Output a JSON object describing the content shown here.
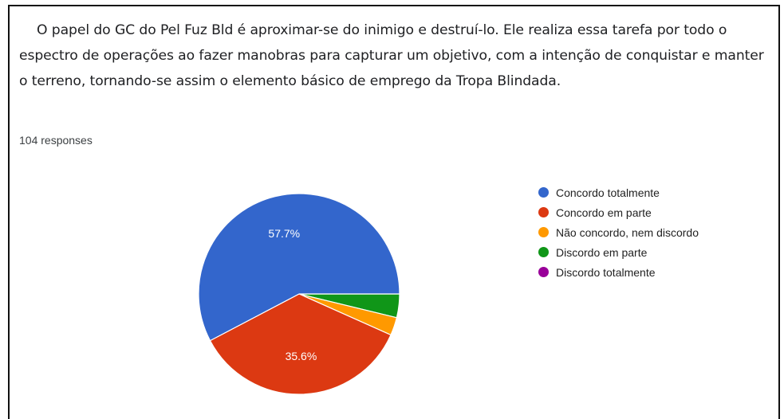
{
  "question": "O papel do GC do Pel Fuz Bld é aproximar-se do inimigo e destruí-lo. Ele realiza essa tarefa por todo o espectro de operações ao fazer manobras para capturar um objetivo, com a intenção de conquistar e manter o terreno, tornando-se assim o elemento básico de emprego da Tropa Blindada.",
  "responses_text": "104 responses",
  "chart_data": {
    "type": "pie",
    "title": "",
    "total_responses": 104,
    "legend_position": "right",
    "slices": [
      {
        "label": "Concordo totalmente",
        "percent": 57.7,
        "color": "#3366cc",
        "display_label": "57.7%"
      },
      {
        "label": "Concordo em parte",
        "percent": 35.6,
        "color": "#dc3912",
        "display_label": "35.6%"
      },
      {
        "label": "Não concordo, nem discordo",
        "percent": 2.9,
        "color": "#ff9900",
        "display_label": ""
      },
      {
        "label": "Discordo em parte",
        "percent": 3.8,
        "color": "#109618",
        "display_label": ""
      },
      {
        "label": "Discordo totalmente",
        "percent": 0,
        "color": "#990099",
        "display_label": ""
      }
    ]
  }
}
